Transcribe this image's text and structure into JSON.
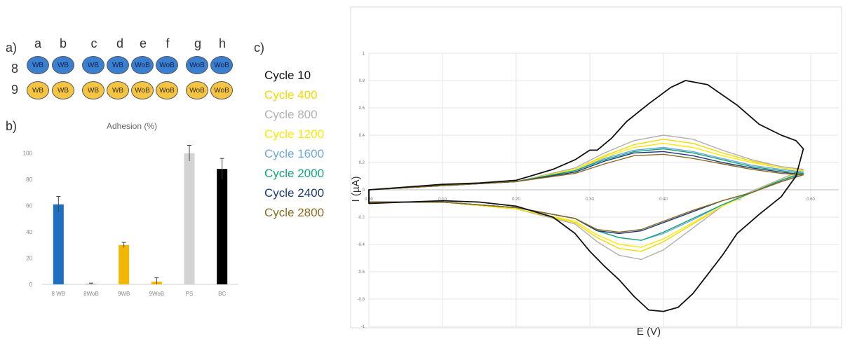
{
  "panel_labels": {
    "a": "a)",
    "b": "b)",
    "c": "c)"
  },
  "plate": {
    "columns": [
      "a",
      "b",
      "c",
      "d",
      "e",
      "f",
      "g",
      "h"
    ],
    "rows": [
      {
        "label": "8",
        "color": "#3a7fd0",
        "wells": [
          "WB",
          "WB",
          "WB",
          "WB",
          "WoB",
          "WoB",
          "WoB",
          "WoB"
        ]
      },
      {
        "label": "9",
        "color": "#f4c542",
        "wells": [
          "WB",
          "WB",
          "WB",
          "WB",
          "WoB",
          "WoB",
          "WoB",
          "WoB"
        ]
      }
    ]
  },
  "chart_data": [
    {
      "type": "bar",
      "title": "Adhesion (%)",
      "categories": [
        "8 WB",
        "8WoB",
        "9WB",
        "9WoB",
        "PS",
        "BC"
      ],
      "values": [
        61,
        0.5,
        30,
        2,
        100,
        88
      ],
      "errors": [
        6,
        0.5,
        2,
        3,
        6,
        8
      ],
      "colors": [
        "#1f6fc0",
        "#a0a0a0",
        "#f2b705",
        "#f2b705",
        "#d3d3d3",
        "#000000"
      ],
      "ylim": [
        0,
        110
      ],
      "yticks": [
        "0",
        "20",
        "40",
        "60",
        "80",
        "100"
      ],
      "grid": false
    },
    {
      "type": "line",
      "title": "",
      "xlabel": "E (V)",
      "ylabel": "I (µA)",
      "xlim": [
        0,
        0.6
      ],
      "ylim": [
        -1,
        1
      ],
      "xticks": [
        "0.00",
        "0.10",
        "0.20",
        "0.30",
        "0.40",
        "0.50",
        "0.60"
      ],
      "yticks": [
        "1",
        "0.8",
        "0.6",
        "0.4",
        "0.2",
        "0",
        "-0.2",
        "-0.4",
        "-0.6",
        "-0.8",
        "-1"
      ],
      "grid": true,
      "legend_position": "left",
      "series": [
        {
          "name": "Cycle 10",
          "color": "#111111",
          "x": [
            0,
            0.05,
            0.1,
            0.15,
            0.2,
            0.25,
            0.28,
            0.3,
            0.31,
            0.33,
            0.35,
            0.38,
            0.41,
            0.43,
            0.46,
            0.5,
            0.53,
            0.56,
            0.58,
            0.59,
            0.58,
            0.56,
            0.53,
            0.5,
            0.48,
            0.46,
            0.44,
            0.42,
            0.4,
            0.38,
            0.36,
            0.34,
            0.32,
            0.3,
            0.28,
            0.25,
            0.2,
            0.15,
            0.1,
            0.05,
            0
          ],
          "y": [
            0,
            0.02,
            0.04,
            0.05,
            0.07,
            0.15,
            0.22,
            0.29,
            0.29,
            0.38,
            0.5,
            0.63,
            0.75,
            0.8,
            0.77,
            0.62,
            0.48,
            0.4,
            0.36,
            0.3,
            0.1,
            -0.05,
            -0.18,
            -0.32,
            -0.48,
            -0.62,
            -0.76,
            -0.86,
            -0.89,
            -0.88,
            -0.78,
            -0.66,
            -0.56,
            -0.45,
            -0.32,
            -0.2,
            -0.12,
            -0.09,
            -0.08,
            -0.09,
            -0.1
          ]
        },
        {
          "name": "Cycle 400",
          "color": "#f5d800",
          "x": [
            0,
            0.1,
            0.2,
            0.28,
            0.32,
            0.36,
            0.4,
            0.44,
            0.48,
            0.52,
            0.56,
            0.59,
            0.56,
            0.52,
            0.48,
            0.44,
            0.4,
            0.37,
            0.34,
            0.31,
            0.28,
            0.2,
            0.1,
            0
          ],
          "y": [
            0,
            0.03,
            0.06,
            0.15,
            0.25,
            0.33,
            0.37,
            0.34,
            0.27,
            0.21,
            0.17,
            0.15,
            0.08,
            -0.02,
            -0.12,
            -0.25,
            -0.38,
            -0.45,
            -0.43,
            -0.35,
            -0.24,
            -0.14,
            -0.09,
            -0.09
          ]
        },
        {
          "name": "Cycle 800",
          "color": "#b0b0b0",
          "x": [
            0,
            0.1,
            0.2,
            0.28,
            0.32,
            0.36,
            0.4,
            0.44,
            0.48,
            0.52,
            0.56,
            0.59,
            0.56,
            0.52,
            0.48,
            0.44,
            0.4,
            0.37,
            0.34,
            0.31,
            0.28,
            0.2,
            0.1,
            0
          ],
          "y": [
            0,
            0.03,
            0.06,
            0.16,
            0.27,
            0.36,
            0.4,
            0.37,
            0.29,
            0.22,
            0.17,
            0.15,
            0.08,
            -0.01,
            -0.12,
            -0.28,
            -0.44,
            -0.51,
            -0.48,
            -0.38,
            -0.25,
            -0.14,
            -0.09,
            -0.09
          ]
        },
        {
          "name": "Cycle 1200",
          "color": "#ffe800",
          "x": [
            0,
            0.1,
            0.2,
            0.28,
            0.32,
            0.36,
            0.4,
            0.44,
            0.48,
            0.52,
            0.56,
            0.59,
            0.56,
            0.52,
            0.48,
            0.44,
            0.4,
            0.37,
            0.34,
            0.31,
            0.28,
            0.2,
            0.1,
            0
          ],
          "y": [
            0,
            0.03,
            0.06,
            0.15,
            0.24,
            0.31,
            0.34,
            0.31,
            0.25,
            0.2,
            0.16,
            0.14,
            0.07,
            -0.02,
            -0.12,
            -0.24,
            -0.36,
            -0.42,
            -0.4,
            -0.33,
            -0.23,
            -0.14,
            -0.09,
            -0.09
          ]
        },
        {
          "name": "Cycle 1600",
          "color": "#6fa8dc",
          "x": [
            0,
            0.1,
            0.2,
            0.28,
            0.32,
            0.36,
            0.4,
            0.44,
            0.48,
            0.52,
            0.56,
            0.59,
            0.56,
            0.52,
            0.48,
            0.44,
            0.4,
            0.37,
            0.34,
            0.31,
            0.28,
            0.2,
            0.1,
            0
          ],
          "y": [
            0,
            0.03,
            0.06,
            0.14,
            0.23,
            0.29,
            0.31,
            0.28,
            0.23,
            0.18,
            0.15,
            0.13,
            0.07,
            -0.02,
            -0.11,
            -0.22,
            -0.32,
            -0.37,
            -0.35,
            -0.3,
            -0.21,
            -0.13,
            -0.09,
            -0.09
          ]
        },
        {
          "name": "Cycle 2000",
          "color": "#16a37a",
          "x": [
            0,
            0.1,
            0.2,
            0.28,
            0.32,
            0.36,
            0.4,
            0.44,
            0.48,
            0.52,
            0.56,
            0.59,
            0.56,
            0.52,
            0.48,
            0.44,
            0.4,
            0.37,
            0.34,
            0.31,
            0.28,
            0.2,
            0.1,
            0
          ],
          "y": [
            0,
            0.03,
            0.06,
            0.14,
            0.22,
            0.28,
            0.3,
            0.27,
            0.22,
            0.17,
            0.14,
            0.12,
            0.07,
            -0.02,
            -0.11,
            -0.21,
            -0.31,
            -0.37,
            -0.35,
            -0.3,
            -0.21,
            -0.13,
            -0.09,
            -0.09
          ]
        },
        {
          "name": "Cycle 2400",
          "color": "#1a3a78",
          "x": [
            0,
            0.1,
            0.2,
            0.28,
            0.32,
            0.36,
            0.4,
            0.44,
            0.48,
            0.52,
            0.56,
            0.59,
            0.56,
            0.52,
            0.48,
            0.44,
            0.4,
            0.37,
            0.34,
            0.31,
            0.28,
            0.2,
            0.1,
            0
          ],
          "y": [
            0,
            0.03,
            0.06,
            0.13,
            0.21,
            0.27,
            0.28,
            0.25,
            0.2,
            0.16,
            0.13,
            0.11,
            0.06,
            -0.02,
            -0.08,
            -0.16,
            -0.24,
            -0.3,
            -0.32,
            -0.3,
            -0.21,
            -0.13,
            -0.09,
            -0.09
          ]
        },
        {
          "name": "Cycle 2800",
          "color": "#8a6a20",
          "x": [
            0,
            0.1,
            0.2,
            0.28,
            0.32,
            0.36,
            0.4,
            0.44,
            0.48,
            0.52,
            0.56,
            0.59,
            0.56,
            0.52,
            0.48,
            0.44,
            0.4,
            0.37,
            0.34,
            0.31,
            0.28,
            0.2,
            0.1,
            0
          ],
          "y": [
            0,
            0.03,
            0.06,
            0.12,
            0.19,
            0.25,
            0.26,
            0.23,
            0.19,
            0.15,
            0.12,
            0.11,
            0.06,
            -0.02,
            -0.08,
            -0.15,
            -0.23,
            -0.29,
            -0.31,
            -0.29,
            -0.21,
            -0.13,
            -0.09,
            -0.09
          ]
        }
      ]
    }
  ]
}
